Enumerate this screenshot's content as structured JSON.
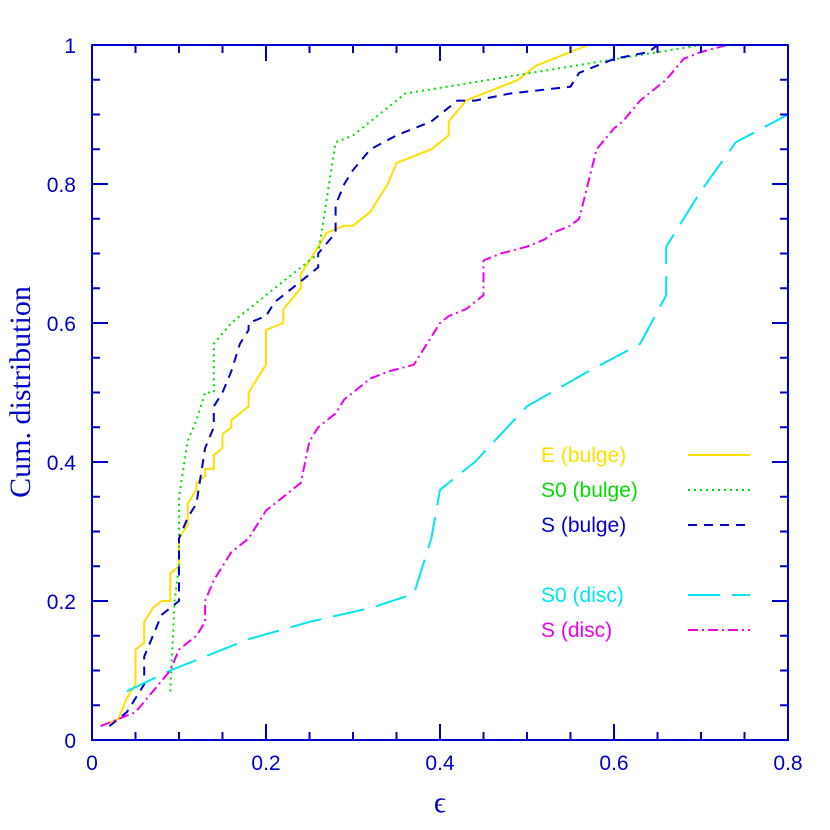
{
  "chart_data": {
    "type": "line",
    "title": "",
    "xlabel": "ϵ",
    "ylabel": "Cum. distribution",
    "xlim": [
      0,
      0.8
    ],
    "ylim": [
      0,
      1
    ],
    "xticks": [
      "0",
      "0.2",
      "0.4",
      "0.6",
      "0.8"
    ],
    "yticks": [
      "0",
      "0.2",
      "0.4",
      "0.6",
      "0.8",
      "1"
    ],
    "grid": false,
    "legend_placement": "center-right",
    "axis_color": "#0000cc",
    "series": [
      {
        "name": "E (bulge)",
        "color": "#ffe000",
        "dash": "solid",
        "x": [
          0.01,
          0.03,
          0.04,
          0.05,
          0.05,
          0.06,
          0.06,
          0.07,
          0.08,
          0.09,
          0.09,
          0.1,
          0.1,
          0.11,
          0.11,
          0.12,
          0.12,
          0.13,
          0.13,
          0.14,
          0.14,
          0.15,
          0.15,
          0.16,
          0.16,
          0.18,
          0.18,
          0.2,
          0.2,
          0.22,
          0.22,
          0.24,
          0.24,
          0.26,
          0.27,
          0.29,
          0.3,
          0.32,
          0.34,
          0.35,
          0.37,
          0.39,
          0.4,
          0.41,
          0.41,
          0.43,
          0.45,
          0.47,
          0.49,
          0.5,
          0.51,
          0.53,
          0.55,
          0.57,
          0.58
        ],
        "y": [
          0.02,
          0.03,
          0.06,
          0.08,
          0.13,
          0.14,
          0.17,
          0.19,
          0.2,
          0.2,
          0.24,
          0.25,
          0.29,
          0.31,
          0.34,
          0.36,
          0.37,
          0.38,
          0.39,
          0.39,
          0.41,
          0.42,
          0.44,
          0.45,
          0.46,
          0.48,
          0.5,
          0.54,
          0.59,
          0.6,
          0.62,
          0.65,
          0.67,
          0.71,
          0.73,
          0.74,
          0.74,
          0.76,
          0.8,
          0.83,
          0.84,
          0.85,
          0.86,
          0.87,
          0.89,
          0.92,
          0.93,
          0.94,
          0.95,
          0.96,
          0.97,
          0.98,
          0.99,
          1.0,
          1.0
        ]
      },
      {
        "name": "S0 (bulge)",
        "color": "#00dd00",
        "dash": "2,4",
        "x": [
          0.09,
          0.095,
          0.1,
          0.1,
          0.11,
          0.12,
          0.13,
          0.14,
          0.14,
          0.16,
          0.2,
          0.26,
          0.28,
          0.3,
          0.36,
          0.7
        ],
        "y": [
          0.07,
          0.2,
          0.25,
          0.35,
          0.43,
          0.46,
          0.5,
          0.5,
          0.57,
          0.6,
          0.64,
          0.7,
          0.86,
          0.87,
          0.93,
          1.0
        ]
      },
      {
        "name": "S (bulge)",
        "color": "#0000cc",
        "dash": "9,7",
        "x": [
          0.02,
          0.04,
          0.06,
          0.06,
          0.07,
          0.08,
          0.1,
          0.1,
          0.11,
          0.12,
          0.13,
          0.14,
          0.14,
          0.15,
          0.16,
          0.17,
          0.18,
          0.18,
          0.2,
          0.21,
          0.22,
          0.23,
          0.24,
          0.25,
          0.26,
          0.26,
          0.28,
          0.28,
          0.29,
          0.3,
          0.32,
          0.35,
          0.39,
          0.42,
          0.44,
          0.48,
          0.55,
          0.56,
          0.6,
          0.64,
          0.65,
          0.66,
          0.7
        ],
        "y": [
          0.02,
          0.04,
          0.08,
          0.12,
          0.15,
          0.18,
          0.2,
          0.29,
          0.32,
          0.34,
          0.42,
          0.45,
          0.48,
          0.5,
          0.53,
          0.57,
          0.59,
          0.6,
          0.61,
          0.63,
          0.64,
          0.65,
          0.66,
          0.67,
          0.68,
          0.7,
          0.73,
          0.77,
          0.8,
          0.82,
          0.85,
          0.87,
          0.89,
          0.92,
          0.92,
          0.93,
          0.94,
          0.96,
          0.98,
          0.99,
          1.0,
          1.0,
          1.0
        ]
      },
      {
        "name": "S0 (disc)",
        "color": "#00e5f0",
        "dash": "32,12",
        "x": [
          0.04,
          0.09,
          0.14,
          0.18,
          0.25,
          0.32,
          0.37,
          0.39,
          0.4,
          0.44,
          0.5,
          0.57,
          0.63,
          0.66,
          0.66,
          0.7,
          0.74,
          0.8
        ],
        "y": [
          0.07,
          0.1,
          0.125,
          0.145,
          0.17,
          0.19,
          0.21,
          0.29,
          0.36,
          0.4,
          0.48,
          0.53,
          0.57,
          0.64,
          0.71,
          0.79,
          0.86,
          0.9
        ]
      },
      {
        "name": "S (disc)",
        "color": "#ee00ee",
        "dash": "10,4,2,4",
        "x": [
          0.01,
          0.03,
          0.05,
          0.07,
          0.09,
          0.1,
          0.11,
          0.12,
          0.13,
          0.13,
          0.14,
          0.15,
          0.16,
          0.17,
          0.18,
          0.19,
          0.2,
          0.22,
          0.24,
          0.25,
          0.26,
          0.28,
          0.29,
          0.3,
          0.32,
          0.34,
          0.37,
          0.38,
          0.4,
          0.41,
          0.43,
          0.45,
          0.45,
          0.47,
          0.5,
          0.52,
          0.53,
          0.55,
          0.56,
          0.57,
          0.58,
          0.6,
          0.61,
          0.63,
          0.65,
          0.66,
          0.68,
          0.7,
          0.73,
          0.8
        ],
        "y": [
          0.02,
          0.03,
          0.04,
          0.07,
          0.1,
          0.13,
          0.14,
          0.15,
          0.17,
          0.2,
          0.23,
          0.25,
          0.27,
          0.28,
          0.29,
          0.31,
          0.33,
          0.35,
          0.37,
          0.43,
          0.45,
          0.47,
          0.49,
          0.5,
          0.52,
          0.53,
          0.54,
          0.56,
          0.6,
          0.61,
          0.62,
          0.64,
          0.69,
          0.7,
          0.71,
          0.72,
          0.73,
          0.74,
          0.75,
          0.8,
          0.85,
          0.88,
          0.89,
          0.92,
          0.94,
          0.95,
          0.98,
          0.99,
          1.0,
          1.0
        ]
      }
    ]
  }
}
